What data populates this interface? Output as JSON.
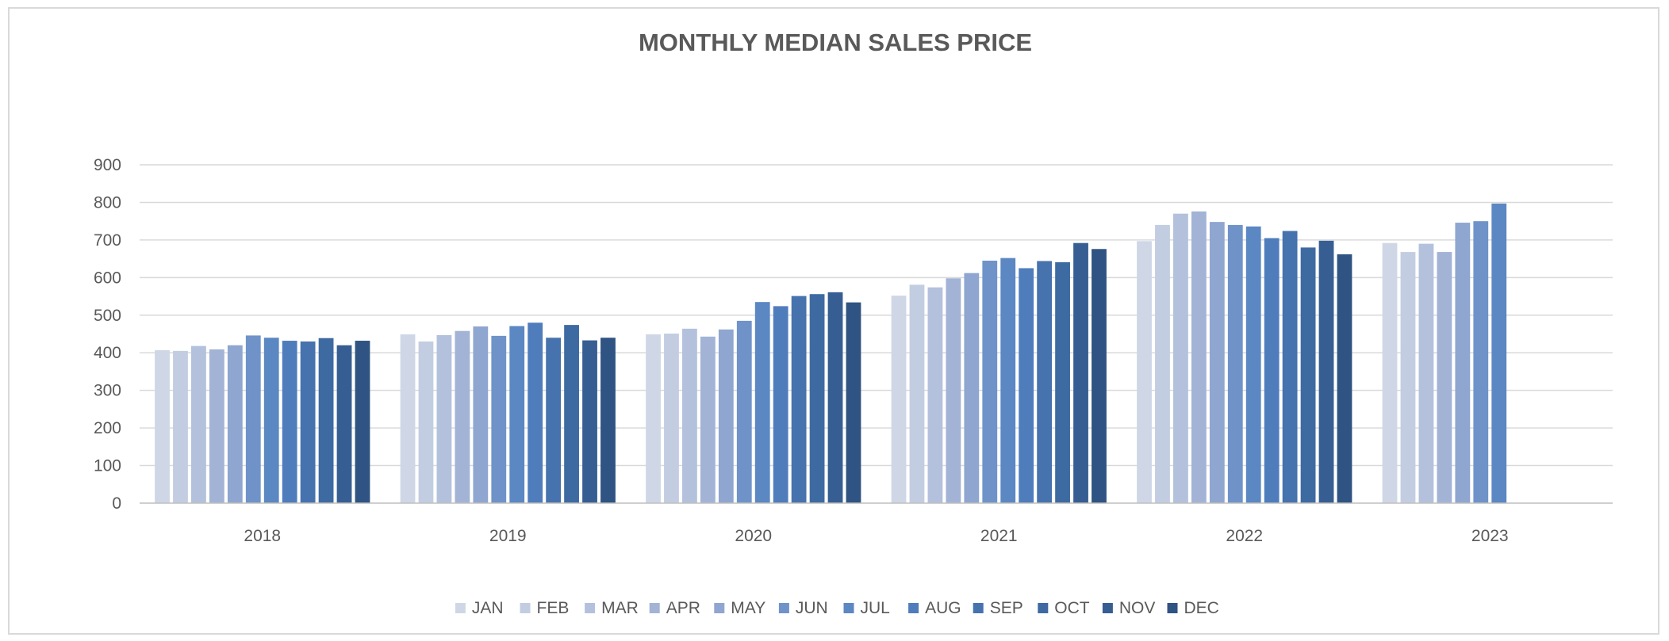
{
  "chart_data": {
    "type": "bar",
    "title": "MONTHLY MEDIAN SALES PRICE",
    "xlabel": "",
    "ylabel": "",
    "categories": [
      "2018",
      "2019",
      "2020",
      "2021",
      "2022",
      "2023"
    ],
    "ylim": [
      0,
      900
    ],
    "yticks": [
      "0",
      "100",
      "200",
      "300",
      "400",
      "500",
      "600",
      "700",
      "800",
      "900"
    ],
    "grid": true,
    "legend_position": "bottom",
    "series": [
      {
        "name": "JAN",
        "color": "#cfd7e6",
        "values": [
          407,
          449,
          449,
          552,
          697,
          692
        ]
      },
      {
        "name": "FEB",
        "color": "#c3cde1",
        "values": [
          405,
          430,
          451,
          581,
          740,
          668
        ]
      },
      {
        "name": "MAR",
        "color": "#b3c1dc",
        "values": [
          418,
          447,
          464,
          574,
          770,
          690
        ]
      },
      {
        "name": "APR",
        "color": "#a2b3d6",
        "values": [
          409,
          458,
          443,
          598,
          776,
          668
        ]
      },
      {
        "name": "MAY",
        "color": "#8fa6d0",
        "values": [
          420,
          470,
          462,
          612,
          748,
          746
        ]
      },
      {
        "name": "JUN",
        "color": "#6f93c9",
        "values": [
          446,
          445,
          485,
          645,
          740,
          750
        ]
      },
      {
        "name": "JUL",
        "color": "#5b87c3",
        "values": [
          440,
          471,
          535,
          652,
          736,
          797
        ]
      },
      {
        "name": "AUG",
        "color": "#4f7dbc",
        "values": [
          432,
          480,
          524,
          625,
          705,
          null
        ]
      },
      {
        "name": "SEP",
        "color": "#4672ae",
        "values": [
          430,
          440,
          551,
          644,
          724,
          null
        ]
      },
      {
        "name": "OCT",
        "color": "#3e6aa2",
        "values": [
          439,
          474,
          556,
          641,
          680,
          null
        ]
      },
      {
        "name": "NOV",
        "color": "#375e92",
        "values": [
          420,
          433,
          561,
          692,
          698,
          null
        ]
      },
      {
        "name": "DEC",
        "color": "#2f5382",
        "values": [
          432,
          440,
          534,
          676,
          662,
          null
        ]
      }
    ]
  }
}
